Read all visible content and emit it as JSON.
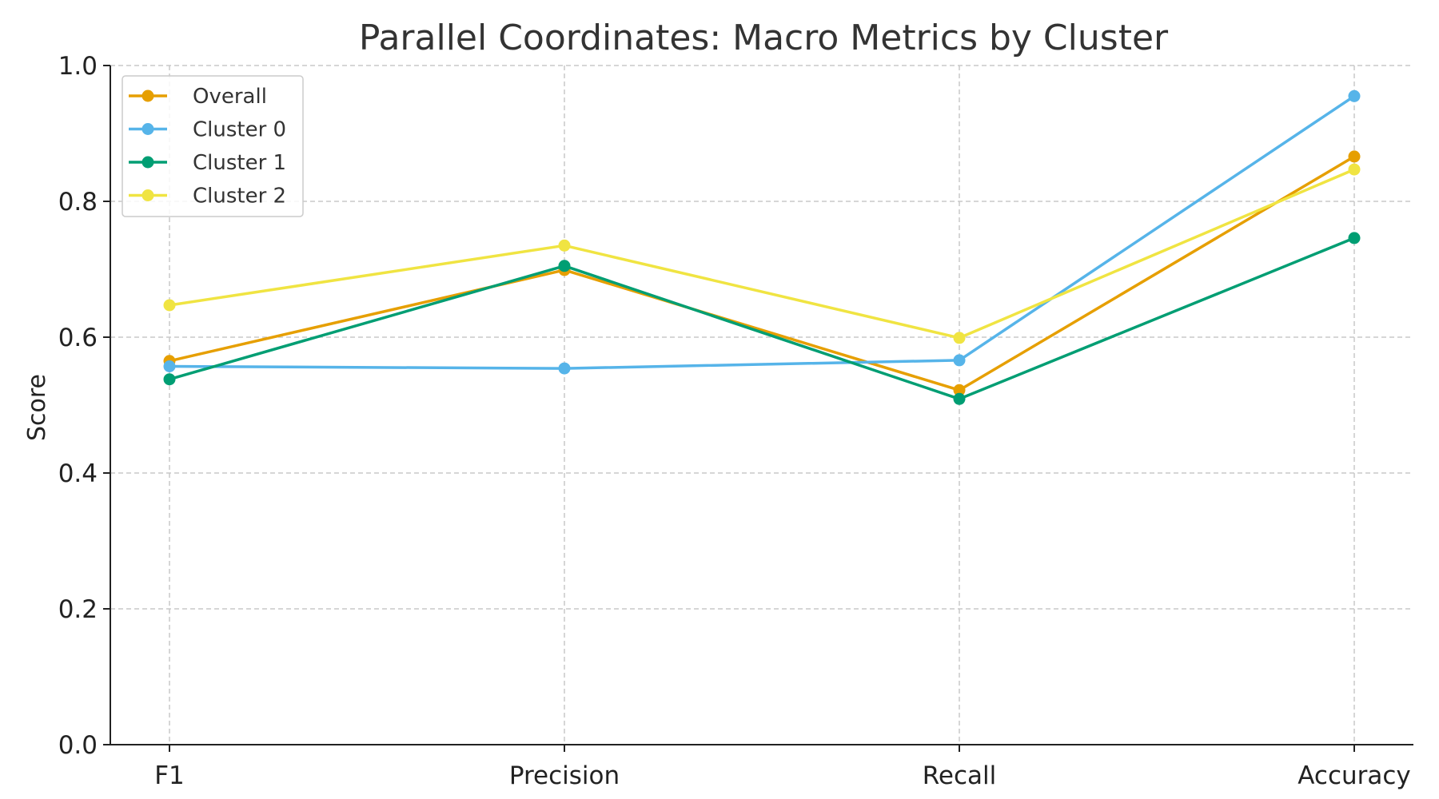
{
  "chart_data": {
    "type": "line",
    "title": "Parallel Coordinates: Macro Metrics by Cluster",
    "xlabel": "",
    "ylabel": "Score",
    "categories": [
      "F1",
      "Precision",
      "Recall",
      "Accuracy"
    ],
    "ylim": [
      0.0,
      1.0
    ],
    "yticks": [
      "0.0",
      "0.2",
      "0.4",
      "0.6",
      "0.8",
      "1.0"
    ],
    "grid": true,
    "legend_position": "top-left",
    "series": [
      {
        "name": "Overall",
        "color": "#E69F00",
        "values": [
          0.565,
          0.699,
          0.522,
          0.866
        ]
      },
      {
        "name": "Cluster 0",
        "color": "#56B4E9",
        "values": [
          0.557,
          0.554,
          0.566,
          0.955
        ]
      },
      {
        "name": "Cluster 1",
        "color": "#009E73",
        "values": [
          0.538,
          0.705,
          0.509,
          0.746
        ]
      },
      {
        "name": "Cluster 2",
        "color": "#F0E442",
        "values": [
          0.647,
          0.735,
          0.599,
          0.847
        ]
      }
    ]
  }
}
